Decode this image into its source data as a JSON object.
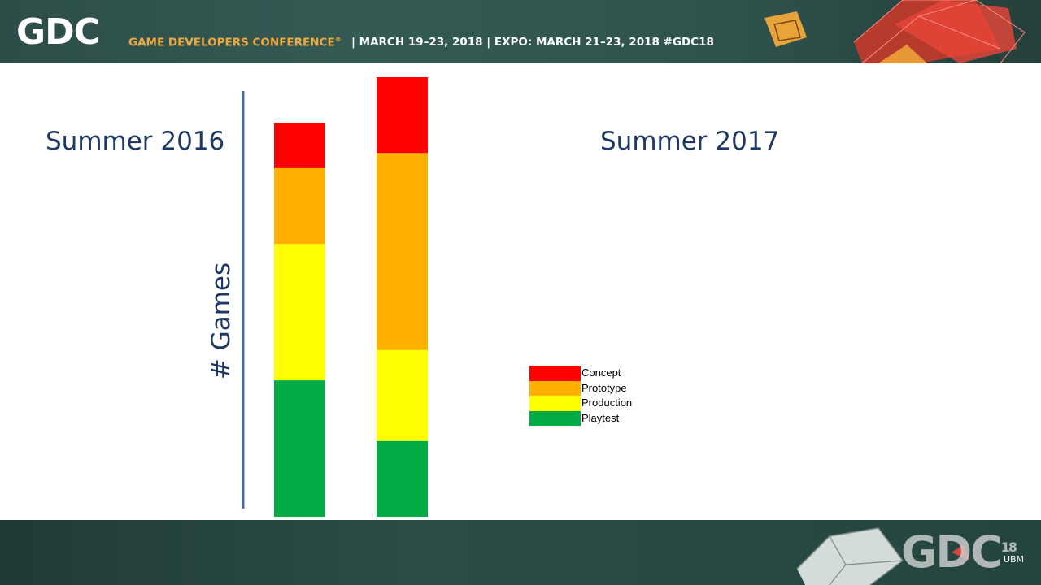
{
  "header": {
    "logo": "GDC",
    "conference": "GAME DEVELOPERS CONFERENCE",
    "conference_mark": "®",
    "dates": "| MARCH 19–23, 2018  |  EXPO: MARCH 21–23, 2018   #GDC18"
  },
  "footer": {
    "logo": "GDC",
    "edition": "18",
    "organizer": "UBM"
  },
  "slide": {
    "title_left": "Summer 2016",
    "title_right": "Summer 2017"
  },
  "colors": {
    "concept": "#ff0000",
    "prototype": "#ffb000",
    "production": "#ffff00",
    "playtest": "#00aa44",
    "axis": "#4a6fa5",
    "title_text": "#1f3864"
  },
  "chart_data": {
    "type": "bar",
    "stacked": true,
    "categories": [
      "Summer 2016",
      "Summer 2017"
    ],
    "series": [
      {
        "name": "Playtest",
        "values": [
          9,
          5
        ]
      },
      {
        "name": "Production",
        "values": [
          9,
          6
        ]
      },
      {
        "name": "Prototype",
        "values": [
          5,
          13
        ]
      },
      {
        "name": "Concept",
        "values": [
          3,
          5
        ]
      }
    ],
    "xlabel": "",
    "ylabel": "# Games",
    "ylim": [
      0,
      29
    ],
    "grid": false,
    "legend_position": "center-right",
    "legend_order": [
      "Concept",
      "Prototype",
      "Production",
      "Playtest"
    ]
  }
}
